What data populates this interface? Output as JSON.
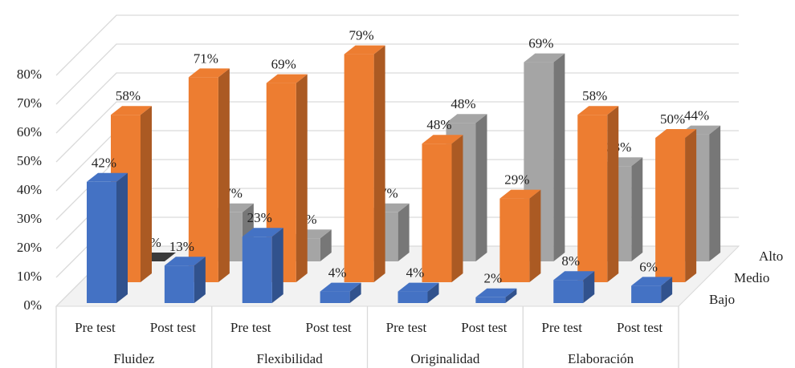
{
  "chart_data": {
    "type": "bar3d",
    "categories": [
      "Pre test",
      "Post test",
      "Pre test",
      "Post test",
      "Pre test",
      "Post test",
      "Pre test",
      "Post test"
    ],
    "groups": [
      "Fluidez",
      "Flexibilidad",
      "Originalidad",
      "Elaboración"
    ],
    "series": [
      {
        "name": "Bajo",
        "color": "#4472c4",
        "values": [
          42,
          13,
          23,
          4,
          4,
          2,
          8,
          6
        ],
        "value_labels": [
          "42%",
          "13%",
          "23%",
          "4%",
          "4%",
          "2%",
          "8%",
          "6%"
        ]
      },
      {
        "name": "Medio",
        "color": "#ed7d31",
        "values": [
          58,
          71,
          69,
          79,
          48,
          29,
          58,
          50
        ],
        "value_labels": [
          "58%",
          "71%",
          "69%",
          "79%",
          "48%",
          "29%",
          "58%",
          "50%"
        ]
      },
      {
        "name": "Alto",
        "color": "#a5a5a5",
        "values": [
          0,
          17,
          8,
          17,
          48,
          69,
          33,
          44
        ],
        "value_labels": [
          "0%",
          "17%",
          "8%",
          "17%",
          "48%",
          "69%",
          "33%",
          "44%"
        ]
      }
    ],
    "ylim": [
      0,
      80
    ],
    "yticks": [
      {
        "value": 0,
        "label": "0%"
      },
      {
        "value": 10,
        "label": "10%"
      },
      {
        "value": 20,
        "label": "20%"
      },
      {
        "value": 30,
        "label": "30%"
      },
      {
        "value": 40,
        "label": "40%"
      },
      {
        "value": 50,
        "label": "50%"
      },
      {
        "value": 60,
        "label": "60%"
      },
      {
        "value": 70,
        "label": "70%"
      },
      {
        "value": 80,
        "label": "80%"
      }
    ],
    "grid": true
  }
}
